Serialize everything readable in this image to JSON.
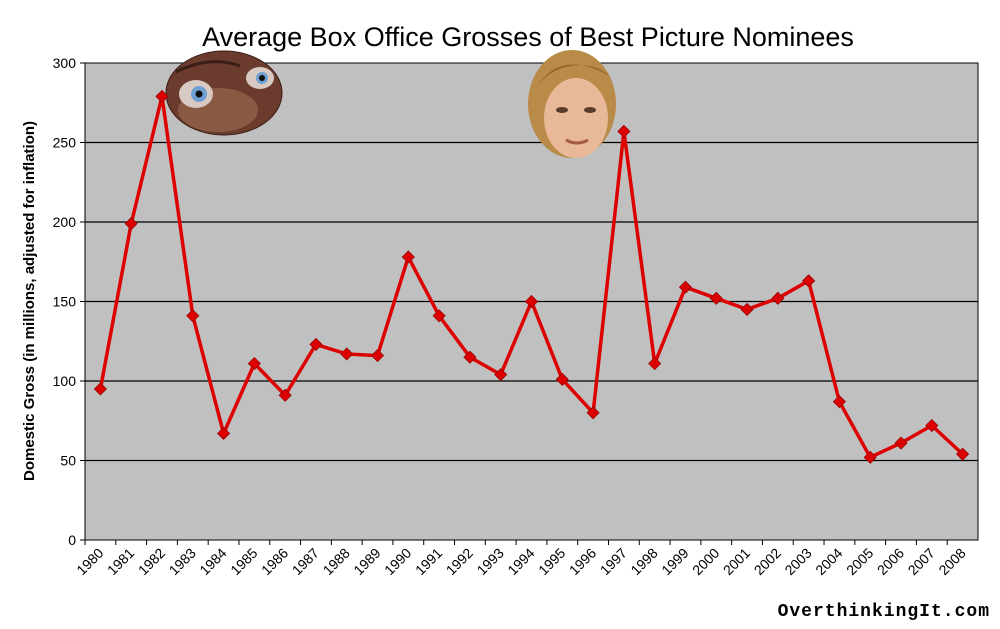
{
  "chart_data": {
    "type": "line",
    "title": "Average Box Office Grosses of Best Picture Nominees",
    "xlabel": "",
    "ylabel": "Domestic Gross (in millions, adjusted for inflation)",
    "ylim": [
      0,
      300
    ],
    "yticks": [
      0,
      50,
      100,
      150,
      200,
      250,
      300
    ],
    "categories": [
      "1980",
      "1981",
      "1982",
      "1983",
      "1984",
      "1985",
      "1986",
      "1987",
      "1988",
      "1989",
      "1990",
      "1991",
      "1992",
      "1993",
      "1994",
      "1995",
      "1996",
      "1997",
      "1998",
      "1999",
      "2000",
      "2001",
      "2002",
      "2003",
      "2004",
      "2005",
      "2006",
      "2007",
      "2008"
    ],
    "series": [
      {
        "name": "",
        "color": "#dd0000",
        "values": [
          95,
          199,
          279,
          141,
          67,
          111,
          91,
          123,
          117,
          116,
          178,
          141,
          115,
          104,
          150,
          101,
          80,
          257,
          111,
          159,
          152,
          145,
          152,
          163,
          87,
          52,
          61,
          72,
          54
        ]
      }
    ],
    "grid": "horizontal",
    "plot_background": "#c0c0c0",
    "legend": "none",
    "images": [
      {
        "name": "et-face-photo",
        "near": "1982"
      },
      {
        "name": "dicaprio-face-photo",
        "near": "1997"
      }
    ]
  },
  "footer": {
    "credit": "OverthinkingIt.com"
  }
}
